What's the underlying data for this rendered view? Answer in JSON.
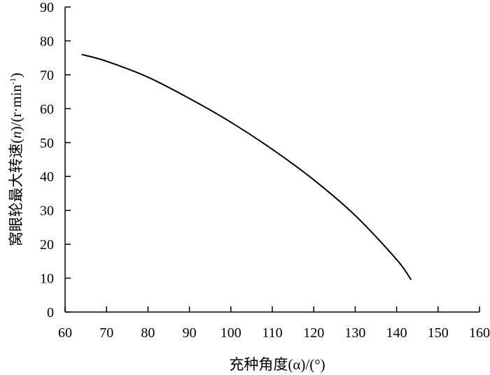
{
  "chart_data": {
    "type": "line",
    "title": "",
    "xlabel": "充种角度(α)/(°)",
    "ylabel_parts": {
      "main": "窝眼轮最大转速(",
      "var": "n",
      "unit": ")/(r·min",
      "sup": "-1",
      "close": ")"
    },
    "xlim": [
      60,
      160
    ],
    "ylim": [
      0,
      90
    ],
    "xticks": [
      60,
      70,
      80,
      90,
      100,
      110,
      120,
      130,
      140,
      150,
      160
    ],
    "yticks": [
      0,
      10,
      20,
      30,
      40,
      50,
      60,
      70,
      80,
      90
    ],
    "grid": false,
    "legend": "none",
    "series": [
      {
        "color": "#000000",
        "x": [
          64,
          70,
          80,
          90,
          100,
          110,
          120,
          130,
          140,
          143.5
        ],
        "y": [
          76,
          74,
          69.3,
          63,
          56,
          48,
          39,
          28.5,
          15.5,
          9.5
        ]
      }
    ]
  }
}
